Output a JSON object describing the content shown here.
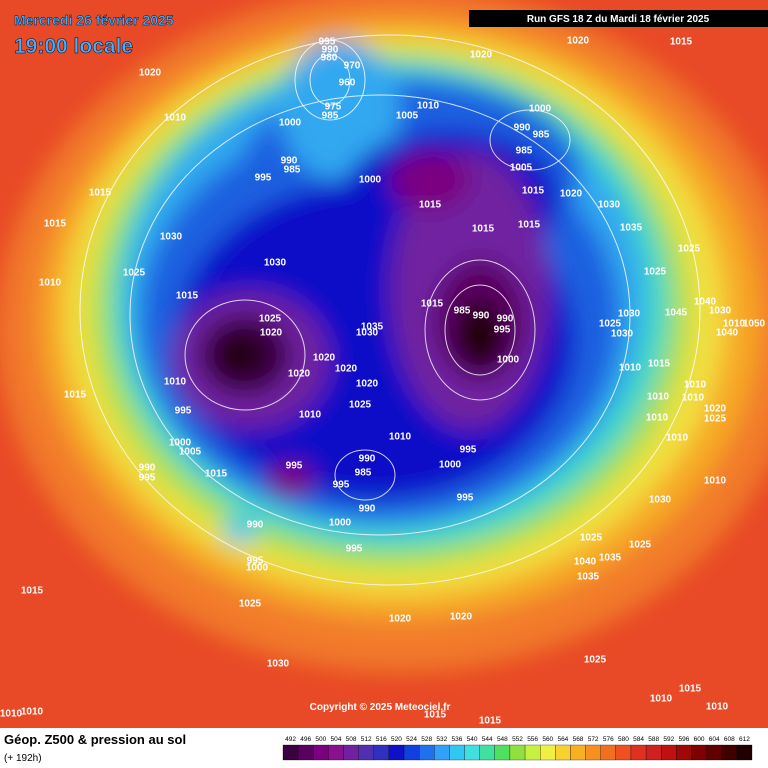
{
  "header": {
    "date": "Mercredi 26 février 2025",
    "time": "19:00 locale",
    "run": "Run GFS 18 Z du Mardi 18 février 2025"
  },
  "footer": {
    "title": "Géop. Z500 & pression au sol",
    "lead": "(+ 192h)",
    "copyright": "Copyright © 2025 Meteociel.fr"
  },
  "colorbar": {
    "values": [
      492,
      496,
      500,
      504,
      508,
      512,
      516,
      520,
      524,
      528,
      532,
      536,
      540,
      544,
      548,
      552,
      556,
      560,
      564,
      568,
      572,
      576,
      580,
      584,
      588,
      592,
      596,
      600,
      604,
      608,
      612
    ],
    "colors": [
      "#3a0040",
      "#5a0060",
      "#7a0080",
      "#8a1090",
      "#7020a0",
      "#5030b0",
      "#3030c0",
      "#1010c8",
      "#1040e0",
      "#2070f0",
      "#30a0f8",
      "#30c8f0",
      "#40e0e0",
      "#40e0a0",
      "#50e060",
      "#90e040",
      "#c8f040",
      "#f0f040",
      "#f8d030",
      "#f8b020",
      "#f89020",
      "#f07020",
      "#f05020",
      "#e03020",
      "#d02020",
      "#c01010",
      "#a00808",
      "#800000",
      "#600000",
      "#400000",
      "#200000"
    ]
  },
  "isobar_labels": [
    1020,
    1010,
    1000,
    995,
    990,
    980,
    970,
    960,
    975,
    985,
    1010,
    1005,
    1020,
    1020,
    1015,
    1000,
    990,
    985,
    985,
    1005,
    990,
    985,
    995,
    1000,
    1015,
    1015,
    1020,
    1030,
    1035,
    1015,
    1015,
    1015,
    1015,
    1030,
    1025,
    1010,
    1030,
    1015,
    1025,
    1025,
    1025,
    1020,
    1035,
    1030,
    1015,
    985,
    990,
    990,
    995,
    1000,
    1020,
    1020,
    1020,
    1020,
    1010,
    1015,
    995,
    1010,
    1025,
    1010,
    1000,
    1005,
    990,
    995,
    1015,
    995,
    990,
    985,
    995,
    995,
    1000,
    990,
    995,
    1000,
    995,
    990,
    995,
    1000,
    1015,
    1025,
    1020,
    1020,
    1030,
    1025,
    1030,
    1025,
    1025,
    1035,
    1040,
    1035,
    1010,
    1015,
    1010,
    1010,
    1010,
    1010,
    1015,
    1015,
    1010,
    1010,
    1010,
    1010,
    1020,
    1025,
    1010,
    1010,
    1015,
    1030,
    1025,
    1030,
    1045,
    1040,
    1030,
    1040,
    1050,
    1010
  ]
}
